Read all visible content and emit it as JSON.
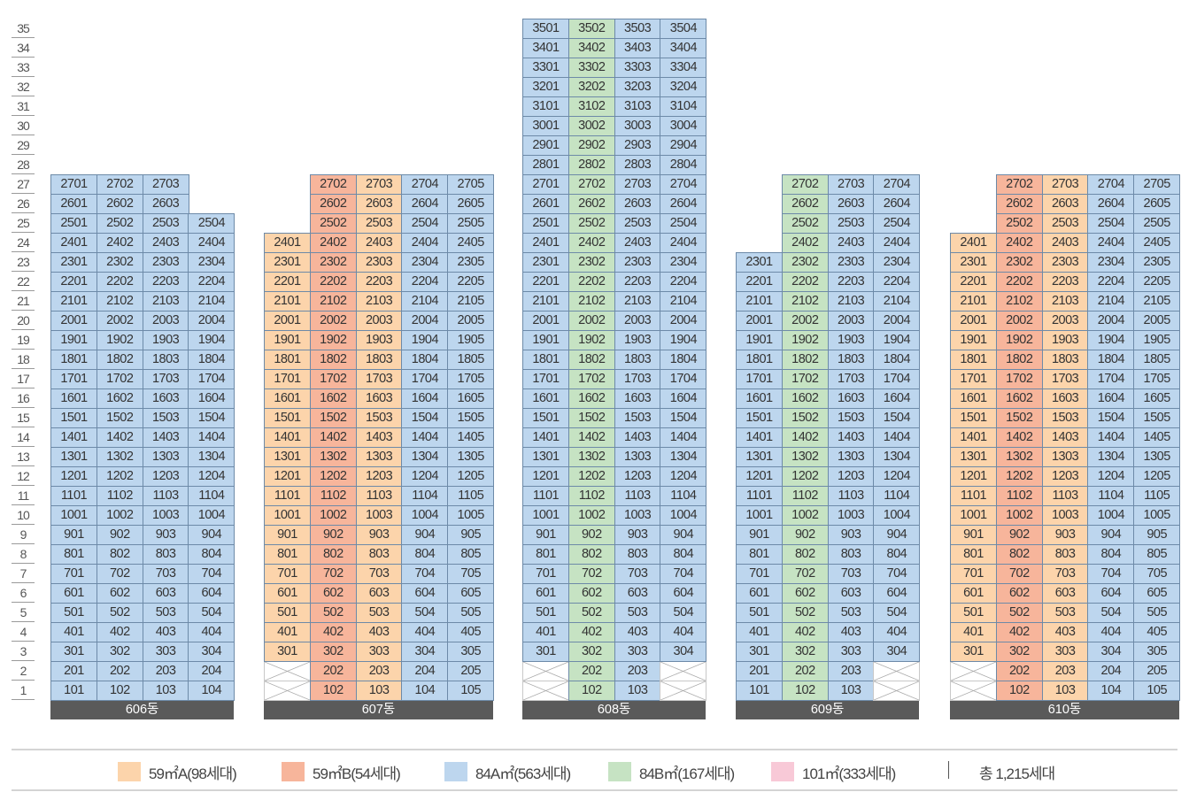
{
  "floors": [
    "35",
    "34",
    "33",
    "32",
    "31",
    "30",
    "29",
    "28",
    "27",
    "26",
    "25",
    "24",
    "23",
    "22",
    "21",
    "20",
    "19",
    "18",
    "17",
    "16",
    "15",
    "14",
    "13",
    "12",
    "11",
    "10",
    "9",
    "8",
    "7",
    "6",
    "5",
    "4",
    "3",
    "2",
    "1"
  ],
  "types": {
    "59A": {
      "label": "59㎡A(98세대)",
      "color": "#fcd4ab"
    },
    "59B": {
      "label": "59㎡B(54세대)",
      "color": "#f7b59b"
    },
    "84A": {
      "label": "84A㎡(563세대)",
      "color": "#bdd6ee"
    },
    "84B": {
      "label": "84B㎡(167세대)",
      "color": "#c6e3c3"
    },
    "101": {
      "label": "101㎡(333세대)",
      "color": "#f8c9d7"
    }
  },
  "legend_order": [
    "59A",
    "59B",
    "84A",
    "84B",
    "101"
  ],
  "total": "총 1,215세대",
  "buildings": [
    {
      "name": "606동",
      "columns": [
        {
          "line": "01",
          "type": "84A",
          "top": 27,
          "void": []
        },
        {
          "line": "02",
          "type": "84A",
          "top": 27,
          "void": []
        },
        {
          "line": "03",
          "type": "84A",
          "top": 27,
          "void": []
        },
        {
          "line": "04",
          "type": "84A",
          "top": 25,
          "void": []
        }
      ]
    },
    {
      "name": "607동",
      "columns": [
        {
          "line": "01",
          "type": "59A",
          "top": 24,
          "void": [
            1,
            2
          ]
        },
        {
          "line": "02",
          "type": "59B",
          "top": 27,
          "void": []
        },
        {
          "line": "03",
          "type": "59A",
          "top": 27,
          "void": []
        },
        {
          "line": "04",
          "type": "84A",
          "top": 27,
          "void": []
        },
        {
          "line": "05",
          "type": "84A",
          "top": 27,
          "void": []
        }
      ]
    },
    {
      "name": "608동",
      "columns": [
        {
          "line": "01",
          "type": "84A",
          "top": 35,
          "void": [
            1,
            2
          ]
        },
        {
          "line": "02",
          "type": "84B",
          "top": 35,
          "void": []
        },
        {
          "line": "03",
          "type": "84A",
          "top": 35,
          "void": []
        },
        {
          "line": "04",
          "type": "84A",
          "top": 35,
          "void": [
            1,
            2
          ]
        }
      ]
    },
    {
      "name": "609동",
      "columns": [
        {
          "line": "01",
          "type": "84A",
          "top": 23,
          "void": []
        },
        {
          "line": "02",
          "type": "84B",
          "top": 27,
          "void": []
        },
        {
          "line": "03",
          "type": "84A",
          "top": 27,
          "void": []
        },
        {
          "line": "04",
          "type": "84A",
          "top": 27,
          "void": [
            1,
            2
          ]
        }
      ]
    },
    {
      "name": "610동",
      "columns": [
        {
          "line": "01",
          "type": "59A",
          "top": 24,
          "void": [
            1,
            2
          ]
        },
        {
          "line": "02",
          "type": "59B",
          "top": 27,
          "void": []
        },
        {
          "line": "03",
          "type": "59A",
          "top": 27,
          "void": []
        },
        {
          "line": "04",
          "type": "84A",
          "top": 27,
          "void": []
        },
        {
          "line": "05",
          "type": "84A",
          "top": 27,
          "void": []
        }
      ]
    }
  ]
}
